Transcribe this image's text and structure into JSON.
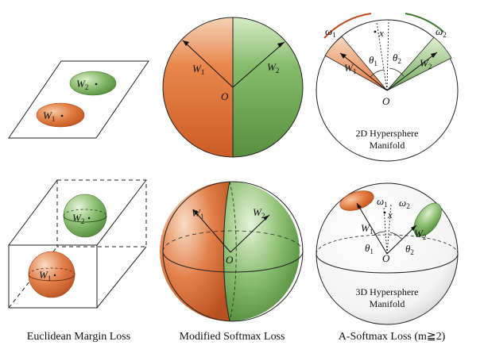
{
  "captions": {
    "euclidean": "Euclidean Margin Loss",
    "softmax": "Modified Softmax Loss",
    "asoftmax": "A-Softmax Loss (m≧2)"
  },
  "panel_2d_hypersphere": {
    "line1": "2D Hypersphere",
    "line2": "Manifold"
  },
  "panel_3d_hypersphere": {
    "line1": "3D Hypersphere",
    "line2": "Manifold"
  },
  "symbols": {
    "w": "W",
    "one": "1",
    "two": "2",
    "origin": "O",
    "x": "x",
    "omega": "ω",
    "theta": "θ"
  },
  "colors": {
    "class1_orange": "#d2622a",
    "class2_green": "#5f9b45",
    "arc1": "#c0471a",
    "arc2": "#3f7a2c"
  }
}
